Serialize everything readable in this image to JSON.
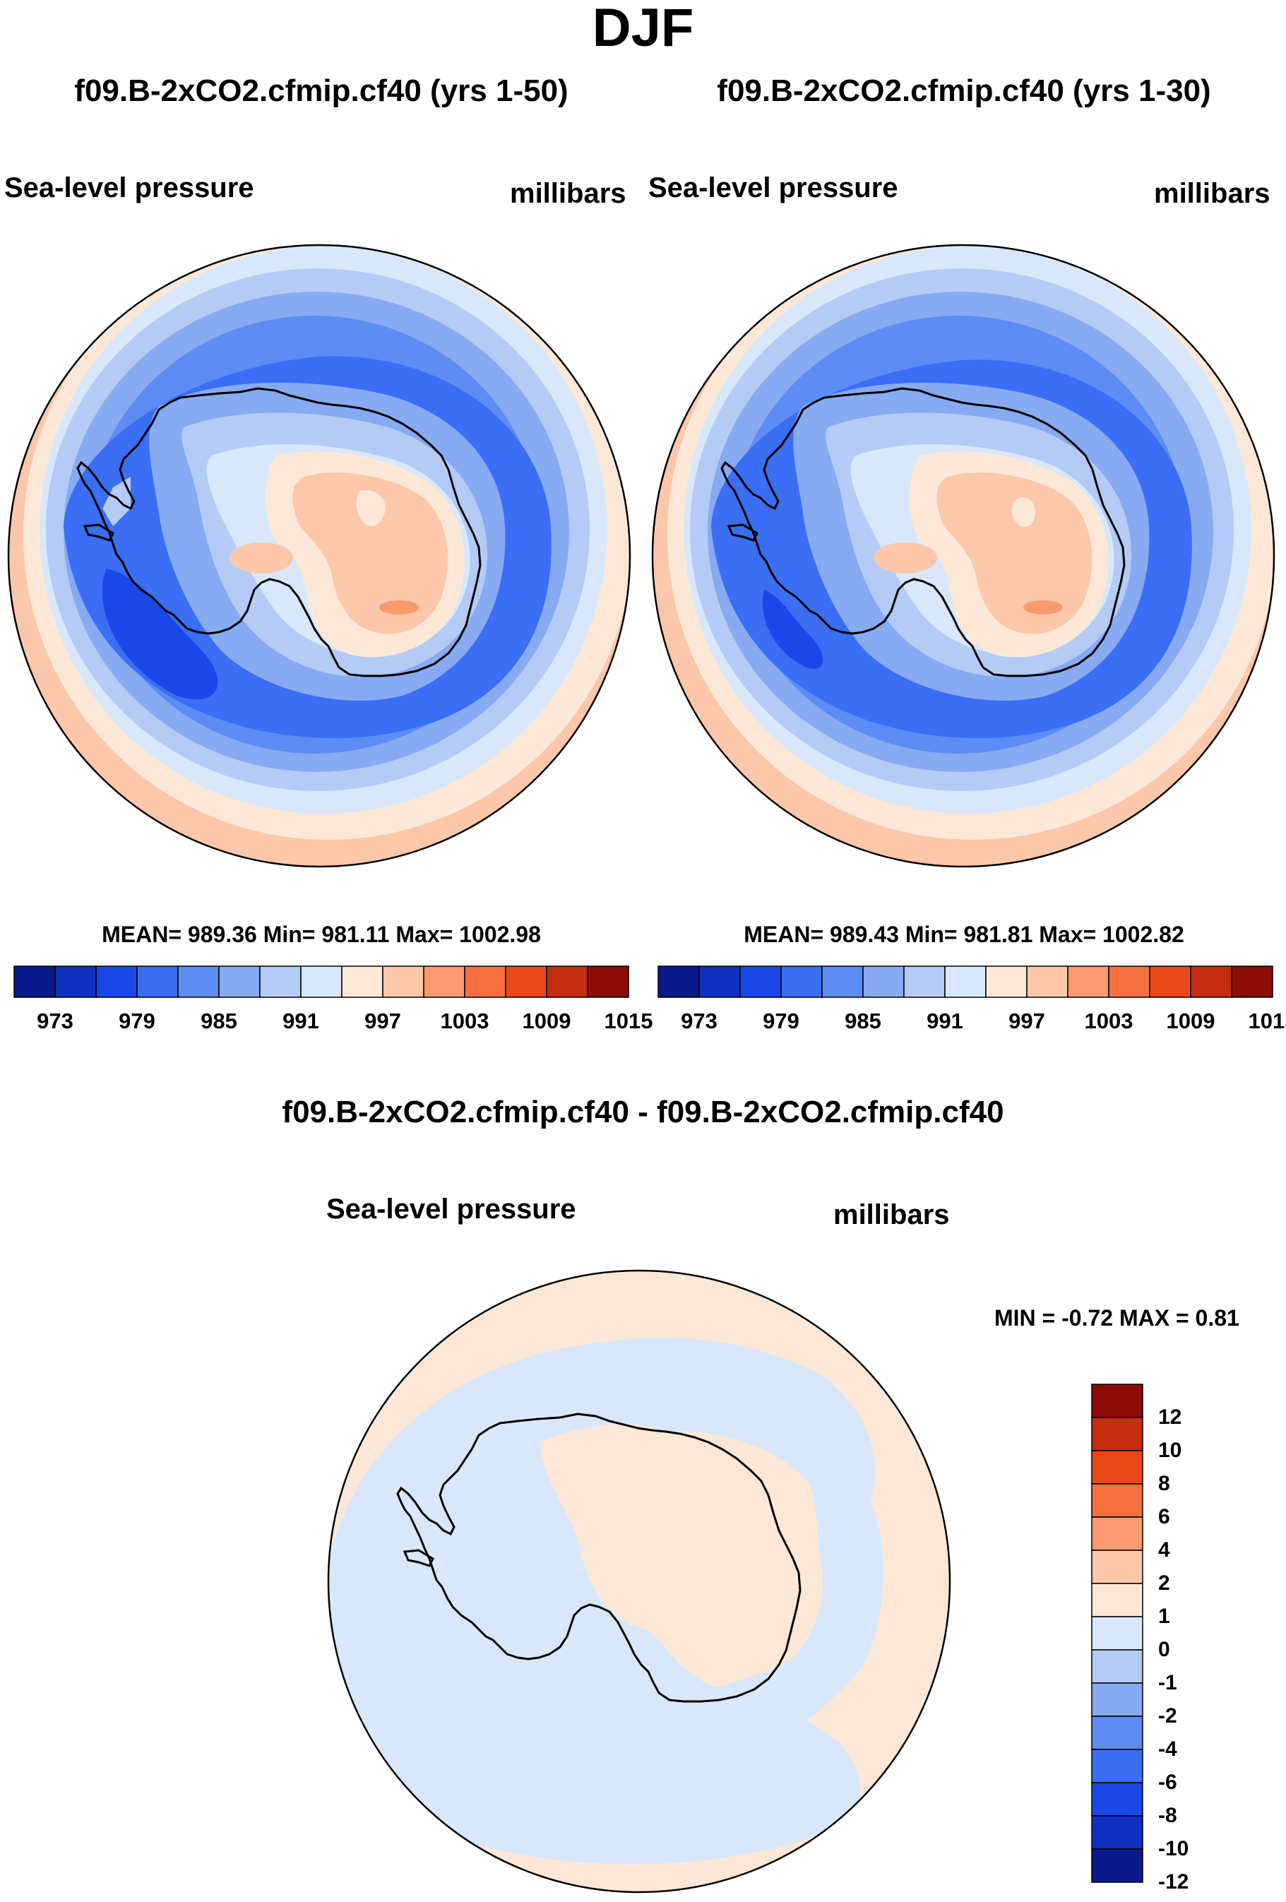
{
  "title": "DJF",
  "panels": [
    {
      "title": "f09.B-2xCO2.cfmip.cf40 (yrs 1-50)",
      "left_label": "Sea-level pressure",
      "right_label": "millibars",
      "stats": "MEAN= 989.36  Min= 981.11  Max= 1002.98"
    },
    {
      "title": "f09.B-2xCO2.cfmip.cf40 (yrs 1-30)",
      "left_label": "Sea-level pressure",
      "right_label": "millibars",
      "stats": "MEAN= 989.43  Min= 981.81  Max= 1002.82"
    }
  ],
  "colorbar": {
    "colors": [
      "#0a1a8c",
      "#1030c0",
      "#1a48e8",
      "#3a6ef5",
      "#5c8cf4",
      "#87aaf2",
      "#b4cbf6",
      "#d8e8fa",
      "#fde8d8",
      "#fcc7aa",
      "#fa9a6e",
      "#f5703e",
      "#e84a17",
      "#c42d0f",
      "#8c0c08"
    ],
    "ticks": [
      "973",
      "979",
      "985",
      "991",
      "997",
      "1003",
      "1009",
      "1015"
    ]
  },
  "diff": {
    "title": "f09.B-2xCO2.cfmip.cf40 - f09.B-2xCO2.cfmip.cf40",
    "left_label": "Sea-level pressure",
    "right_label": "millibars",
    "minmax": "MIN =  -0.72 MAX =   0.81",
    "colors_top_to_bottom": [
      "#8c0c08",
      "#c42d0f",
      "#e84a17",
      "#f5703e",
      "#fa9a6e",
      "#fcc7aa",
      "#fde8d8",
      "#d8e8fa",
      "#b4cbf6",
      "#87aaf2",
      "#5c8cf4",
      "#3a6ef5",
      "#1a48e8",
      "#1030c0",
      "#0a1a8c"
    ],
    "ticks": [
      "12",
      "10",
      "8",
      "6",
      "4",
      "2",
      "1",
      "0",
      "-1",
      "-2",
      "-4",
      "-6",
      "-8",
      "-10",
      "-12"
    ]
  }
}
